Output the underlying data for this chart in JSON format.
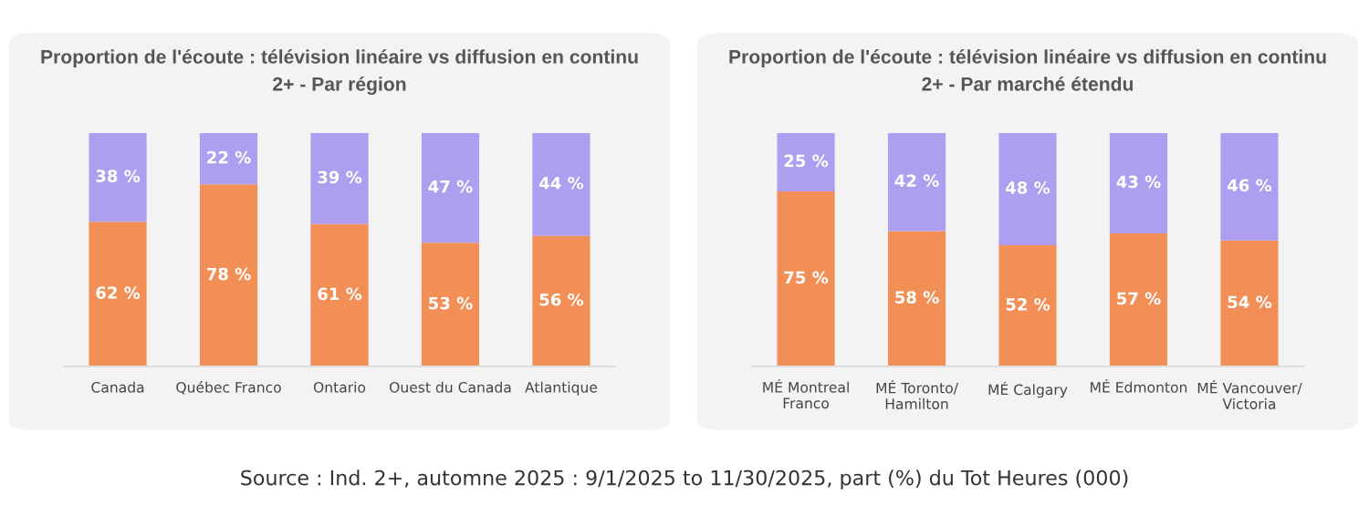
{
  "chart_data": [
    {
      "type": "bar",
      "stacked": true,
      "title": "Proportion de l'écoute : télévision linéaire vs diffusion en continu",
      "subtitle": "2+ - Par région",
      "categories": [
        "Canada",
        "Québec Franco",
        "Ontario",
        "Ouest du Canada",
        "Atlantique"
      ],
      "series": [
        {
          "color": "#f28f57",
          "values": [
            62,
            78,
            61,
            53,
            56
          ],
          "value_labels": [
            "62 %",
            "78 %",
            "61 %",
            "53 %",
            "56 %"
          ]
        },
        {
          "color": "#ae9ef0",
          "values": [
            38,
            22,
            39,
            47,
            44
          ],
          "value_labels": [
            "38 %",
            "22 %",
            "39 %",
            "47 %",
            "44 %"
          ]
        }
      ],
      "annotations": [
        "Source : Ind. 2+, automne 2025 : 9/1/2025 to 11/30/2025, part (%) du Tot Heures (000)"
      ]
    },
    {
      "type": "bar",
      "stacked": true,
      "title": "Proportion de l'écoute : télévision linéaire vs diffusion en continu",
      "subtitle": "2+ - Par marché étendu",
      "categories": [
        "MÉ Montreal\nFranco",
        "MÉ Toronto/\nHamilton",
        "MÉ Calgary",
        "MÉ Edmonton",
        "MÉ Vancouver/\nVictoria"
      ],
      "series": [
        {
          "color": "#f28f57",
          "values": [
            75,
            58,
            52,
            57,
            54
          ],
          "value_labels": [
            "75 %",
            "58 %",
            "52 %",
            "57 %",
            "54 %"
          ]
        },
        {
          "color": "#ae9ef0",
          "values": [
            25,
            42,
            48,
            43,
            46
          ],
          "value_labels": [
            "25 %",
            "42 %",
            "48 %",
            "43 %",
            "46 %"
          ]
        }
      ]
    }
  ]
}
